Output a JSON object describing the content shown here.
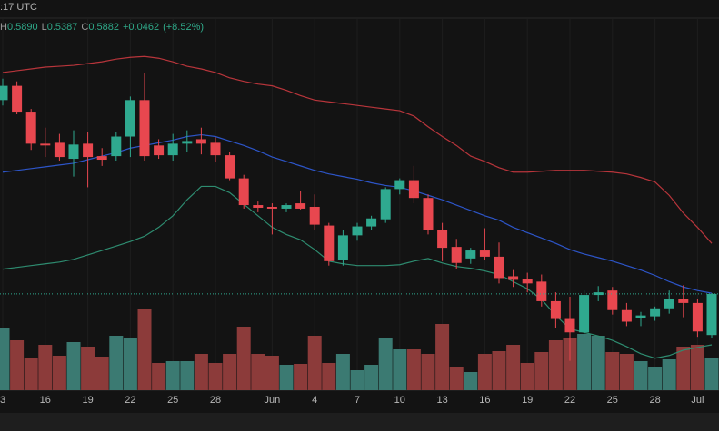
{
  "header": {
    "time": ":17 UTC",
    "high_key": "H",
    "high": "0.5890",
    "low_key": "L",
    "low": "0.5387",
    "close_key": "C",
    "close": "0.5882",
    "change": "+0.0462",
    "change_pct": "(+8.52%)"
  },
  "chart_data": {
    "type": "candlestick",
    "categories": [
      "3",
      null,
      null,
      "16",
      null,
      null,
      "19",
      null,
      null,
      "22",
      null,
      null,
      "25",
      null,
      null,
      "28",
      null,
      null,
      null,
      "Jun",
      null,
      null,
      "4",
      null,
      null,
      "7",
      null,
      null,
      "10",
      null,
      null,
      "13",
      null,
      null,
      "16",
      null,
      null,
      "19",
      null,
      null,
      "22",
      null,
      null,
      "25",
      null,
      null,
      "28",
      null,
      null,
      "Jul",
      null
    ],
    "open": [
      0.806,
      0.822,
      0.793,
      0.757,
      0.758,
      0.74,
      0.757,
      0.743,
      0.743,
      0.765,
      0.806,
      0.755,
      0.744,
      0.757,
      0.762,
      0.758,
      0.744,
      0.718,
      0.688,
      0.686,
      0.684,
      0.69,
      0.686,
      0.665,
      0.626,
      0.654,
      0.664,
      0.672,
      0.706,
      0.716,
      0.696,
      0.66,
      0.641,
      0.628,
      0.637,
      0.63,
      0.608,
      0.605,
      0.602,
      0.58,
      0.56,
      0.545,
      0.587,
      0.592,
      0.57,
      0.561,
      0.563,
      0.572,
      0.583,
      0.578,
      0.542
    ],
    "high": [
      0.83,
      0.827,
      0.796,
      0.775,
      0.768,
      0.772,
      0.77,
      0.752,
      0.77,
      0.81,
      0.836,
      0.762,
      0.768,
      0.772,
      0.775,
      0.764,
      0.748,
      0.722,
      0.692,
      0.69,
      0.69,
      0.704,
      0.7,
      0.668,
      0.66,
      0.668,
      0.676,
      0.708,
      0.718,
      0.732,
      0.7,
      0.668,
      0.65,
      0.64,
      0.662,
      0.646,
      0.615,
      0.612,
      0.61,
      0.59,
      0.585,
      0.592,
      0.597,
      0.596,
      0.578,
      0.568,
      0.574,
      0.592,
      0.598,
      0.582,
      0.589
    ],
    "low": [
      0.8,
      0.79,
      0.75,
      0.742,
      0.738,
      0.72,
      0.708,
      0.732,
      0.738,
      0.742,
      0.738,
      0.74,
      0.738,
      0.748,
      0.745,
      0.737,
      0.716,
      0.684,
      0.68,
      0.655,
      0.68,
      0.683,
      0.66,
      0.62,
      0.62,
      0.648,
      0.66,
      0.668,
      0.7,
      0.69,
      0.655,
      0.625,
      0.616,
      0.622,
      0.626,
      0.6,
      0.596,
      0.59,
      0.574,
      0.55,
      0.513,
      0.54,
      0.58,
      0.565,
      0.552,
      0.552,
      0.558,
      0.566,
      0.562,
      0.54,
      0.5387
    ],
    "close": [
      0.822,
      0.793,
      0.757,
      0.755,
      0.742,
      0.756,
      0.742,
      0.739,
      0.765,
      0.806,
      0.743,
      0.744,
      0.757,
      0.76,
      0.757,
      0.744,
      0.718,
      0.688,
      0.685,
      0.684,
      0.688,
      0.684,
      0.666,
      0.625,
      0.654,
      0.664,
      0.673,
      0.706,
      0.716,
      0.696,
      0.66,
      0.64,
      0.623,
      0.637,
      0.63,
      0.606,
      0.604,
      0.6,
      0.58,
      0.56,
      0.545,
      0.587,
      0.59,
      0.57,
      0.557,
      0.564,
      0.572,
      0.583,
      0.578,
      0.546,
      0.5882
    ],
    "up_color": "#2fa98f",
    "down_color": "#e8474f",
    "volume": [
      68,
      55,
      35,
      50,
      38,
      53,
      48,
      37,
      60,
      58,
      90,
      30,
      32,
      32,
      40,
      30,
      40,
      70,
      40,
      38,
      28,
      29,
      60,
      30,
      40,
      22,
      28,
      58,
      45,
      45,
      40,
      73,
      25,
      20,
      40,
      43,
      50,
      30,
      42,
      55,
      57,
      62,
      60,
      42,
      40,
      32,
      25,
      34,
      48,
      50,
      35
    ],
    "volume_up_color": "#3b7a72",
    "volume_down_color": "#8c3b3a",
    "volume_ylim": [
      0,
      100
    ],
    "ylim": [
      0.48,
      0.8981
    ],
    "bands": [
      {
        "color": "#b8353b",
        "values": [
          0.837,
          0.839,
          0.841,
          0.843,
          0.844,
          0.845,
          0.847,
          0.849,
          0.852,
          0.854,
          0.855,
          0.853,
          0.849,
          0.844,
          0.841,
          0.837,
          0.831,
          0.827,
          0.824,
          0.822,
          0.817,
          0.811,
          0.806,
          0.804,
          0.802,
          0.8,
          0.798,
          0.796,
          0.794,
          0.788,
          0.776,
          0.765,
          0.755,
          0.743,
          0.737,
          0.73,
          0.725,
          0.725,
          0.726,
          0.727,
          0.727,
          0.727,
          0.726,
          0.725,
          0.723,
          0.719,
          0.714,
          0.699,
          0.679,
          0.663,
          0.645
        ]
      },
      {
        "color": "#2d55c8",
        "values": [
          0.725,
          0.727,
          0.729,
          0.731,
          0.733,
          0.735,
          0.739,
          0.743,
          0.747,
          0.752,
          0.755,
          0.758,
          0.761,
          0.765,
          0.767,
          0.765,
          0.76,
          0.755,
          0.749,
          0.742,
          0.737,
          0.732,
          0.727,
          0.723,
          0.72,
          0.717,
          0.713,
          0.71,
          0.708,
          0.704,
          0.699,
          0.694,
          0.688,
          0.682,
          0.676,
          0.671,
          0.663,
          0.657,
          0.651,
          0.645,
          0.638,
          0.633,
          0.629,
          0.625,
          0.62,
          0.615,
          0.609,
          0.602,
          0.596,
          0.592,
          0.589
        ]
      },
      {
        "color": "#2e8c70",
        "values": [
          0.616,
          0.618,
          0.62,
          0.622,
          0.624,
          0.627,
          0.632,
          0.637,
          0.642,
          0.647,
          0.653,
          0.663,
          0.676,
          0.694,
          0.709,
          0.709,
          0.702,
          0.689,
          0.676,
          0.663,
          0.655,
          0.649,
          0.638,
          0.625,
          0.622,
          0.62,
          0.62,
          0.62,
          0.621,
          0.625,
          0.628,
          0.623,
          0.619,
          0.617,
          0.614,
          0.61,
          0.602,
          0.594,
          0.582,
          0.564,
          0.549,
          0.545,
          0.541,
          0.536,
          0.529,
          0.521,
          0.516,
          0.519,
          0.525,
          0.528,
          0.531
        ]
      }
    ],
    "grid": true
  }
}
